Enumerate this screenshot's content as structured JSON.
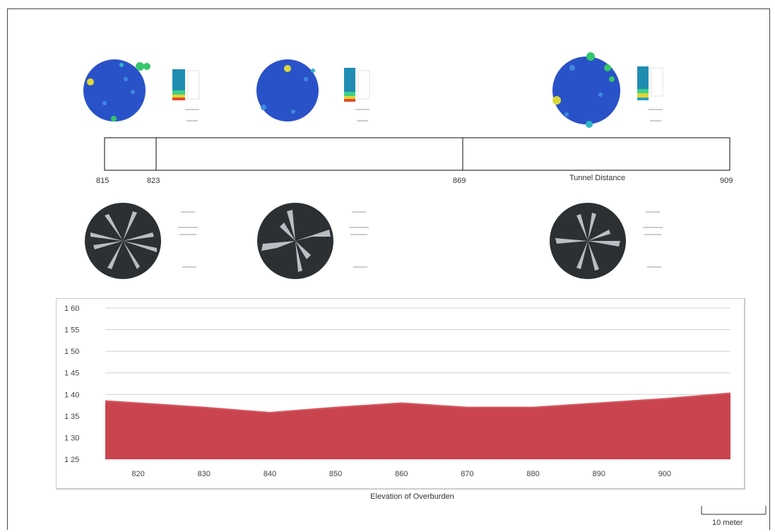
{
  "tunnel_distance": {
    "title": "Tunnel Distance",
    "marks": [
      "815",
      "823",
      "869",
      "909"
    ]
  },
  "scale": {
    "label": "10 meter"
  },
  "colors": {
    "stereonet_bg": "#2a52c8",
    "rose_bg": "#2d3033",
    "rose_petal": "#b8bec4",
    "area_fill": "#c9444e",
    "area_top": "#d55a62",
    "grid": "#d0d0d0",
    "frame": "#444444"
  },
  "icons": [
    "stereonet-icon",
    "rose-diagram-icon",
    "scale-bar-icon"
  ],
  "chart_data": {
    "type": "area",
    "title": "",
    "xlabel": "Elevation of Overburden",
    "ylabel": "",
    "xlim": [
      815,
      910
    ],
    "ylim": [
      125,
      160
    ],
    "xticks": [
      820,
      830,
      840,
      850,
      860,
      870,
      880,
      890,
      900
    ],
    "yticks": [
      125,
      130,
      135,
      140,
      145,
      150,
      155,
      160
    ],
    "ytick_labels": [
      "1 25",
      "1 30",
      "1 35",
      "1 40",
      "1 45",
      "1 50",
      "1 55",
      "1 60"
    ],
    "grid": true,
    "series": [
      {
        "x": [
          815,
          820,
          830,
          840,
          850,
          860,
          870,
          880,
          890,
          900,
          910
        ],
        "values": [
          138.5,
          138,
          137,
          135.8,
          137,
          138,
          137,
          137,
          138,
          139,
          140.3
        ]
      }
    ]
  }
}
